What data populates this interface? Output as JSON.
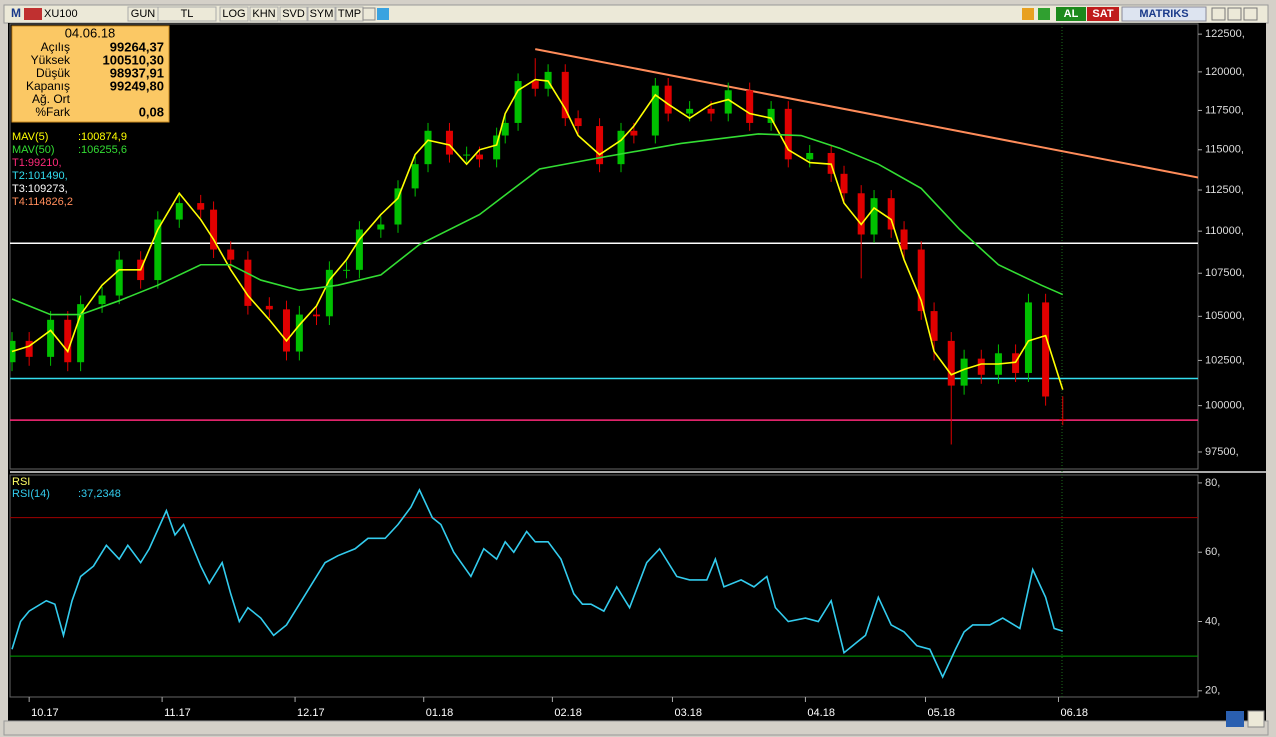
{
  "toolbar": {
    "logo": "M",
    "symbol": "XU100",
    "buttons": [
      "GUN",
      "TL",
      "LOG",
      "KHN",
      "SVD",
      "SYM",
      "TMP"
    ],
    "actions": [
      "AL",
      "SAT"
    ],
    "brand": "MATRIKS"
  },
  "info_box": {
    "date": "04.06.18",
    "rows": [
      {
        "label": "Açılış",
        "value": "99264,37"
      },
      {
        "label": "Yüksek",
        "value": "100510,30"
      },
      {
        "label": "Düşük",
        "value": "98937,91"
      },
      {
        "label": "Kapanış",
        "value": "99249,80"
      },
      {
        "label": "Ağ. Ort"
      },
      {
        "label": "%Fark",
        "value": "0,08"
      }
    ]
  },
  "chart_data": [
    {
      "type": "candlestick",
      "x": [
        0,
        4,
        9,
        13,
        16,
        21,
        25,
        30,
        34,
        39,
        44,
        47,
        51,
        55,
        60,
        64,
        67,
        71,
        74,
        78,
        81,
        86,
        90,
        94,
        97,
        102,
        106,
        109,
        113,
        115,
        118,
        122,
        125,
        129,
        132,
        137,
        142,
        145,
        150,
        153,
        158,
        163,
        167,
        172,
        177,
        181,
        186,
        191,
        194,
        198,
        201,
        205,
        208,
        212,
        215,
        219,
        222,
        226,
        230,
        234,
        237,
        241,
        245
      ],
      "open": [
        102400,
        103600,
        102700,
        104800,
        102400,
        105700,
        106200,
        108300,
        107100,
        110700,
        111700,
        111300,
        108900,
        108300,
        105600,
        105400,
        103000,
        105100,
        105000,
        107700,
        107700,
        110100,
        110400,
        112600,
        114100,
        116200,
        114700,
        114700,
        114400,
        115900,
        116700,
        119400,
        118900,
        120000,
        117000,
        116500,
        114100,
        116200,
        115900,
        119100,
        117300,
        117600,
        117300,
        118800,
        116700,
        117600,
        114400,
        114800,
        113500,
        112300,
        109800,
        112000,
        110100,
        108900,
        105300,
        103600,
        101100,
        102600,
        101700,
        102900,
        101800,
        105800,
        99264.37
      ],
      "high": [
        104100,
        104100,
        105300,
        105300,
        106200,
        106700,
        108800,
        108800,
        111200,
        112200,
        112200,
        111800,
        109400,
        108800,
        106100,
        105900,
        105600,
        105600,
        108200,
        108200,
        110600,
        110900,
        113100,
        114600,
        116700,
        116700,
        115200,
        115200,
        116400,
        117200,
        119900,
        120900,
        120500,
        120500,
        117500,
        117000,
        116700,
        116700,
        119600,
        119600,
        118100,
        118100,
        119300,
        119300,
        118100,
        118100,
        115300,
        115300,
        114000,
        112800,
        112500,
        112500,
        110600,
        109400,
        105800,
        104100,
        103100,
        103100,
        103400,
        103400,
        106300,
        106300,
        100510.3
      ],
      "low": [
        101900,
        102200,
        102200,
        101900,
        101900,
        105200,
        105700,
        106600,
        106600,
        110200,
        110800,
        108400,
        107800,
        105100,
        104900,
        102500,
        102500,
        104500,
        104500,
        107200,
        107200,
        109600,
        109900,
        112100,
        113600,
        114200,
        114200,
        113900,
        113900,
        115400,
        116200,
        118400,
        118400,
        116500,
        116000,
        113600,
        113600,
        115400,
        115400,
        116800,
        116800,
        116800,
        116800,
        116200,
        116200,
        113900,
        113900,
        113000,
        111800,
        107200,
        109300,
        109600,
        108400,
        104800,
        102500,
        97900,
        100600,
        101200,
        101200,
        101300,
        101300,
        100000,
        98937.91
      ],
      "close": [
        103600,
        102700,
        104800,
        102400,
        105700,
        106200,
        108300,
        107100,
        110700,
        111700,
        111300,
        108900,
        108300,
        105600,
        105400,
        103000,
        105100,
        105000,
        107700,
        107700,
        110100,
        110400,
        112600,
        114100,
        116200,
        114700,
        114700,
        114400,
        115900,
        116700,
        119400,
        118900,
        120000,
        117000,
        116500,
        114100,
        116200,
        115900,
        119100,
        117300,
        117600,
        117300,
        118800,
        116700,
        117600,
        114400,
        114800,
        113500,
        112300,
        109800,
        112000,
        110100,
        108900,
        105300,
        103600,
        101100,
        102600,
        101700,
        102900,
        101800,
        105800,
        100500,
        99249.8
      ],
      "up_color": "#00c000",
      "down_color": "#e00000",
      "log": true,
      "ylim": [
        96650,
        123180
      ],
      "yticks": [
        {
          "value": 97500,
          "label": "97500,"
        },
        {
          "value": 100000,
          "label": "100000,"
        },
        {
          "value": 102500,
          "label": "102500,"
        },
        {
          "value": 105000,
          "label": "105000,"
        },
        {
          "value": 107500,
          "label": "107500,"
        },
        {
          "value": 110000,
          "label": "110000,"
        },
        {
          "value": 112500,
          "label": "112500,"
        },
        {
          "value": 115000,
          "label": "115000,"
        },
        {
          "value": 117500,
          "label": "117500,"
        },
        {
          "value": 120000,
          "label": "120000,"
        },
        {
          "value": 122500,
          "label": "122500,"
        }
      ],
      "xlim": [
        0,
        277
      ],
      "xticks": [
        {
          "value": 4,
          "label": "10.17"
        },
        {
          "value": 35,
          "label": "11.17"
        },
        {
          "value": 66,
          "label": "12.17"
        },
        {
          "value": 96,
          "label": "01.18"
        },
        {
          "value": 126,
          "label": "02.18"
        },
        {
          "value": 154,
          "label": "03.18"
        },
        {
          "value": 185,
          "label": "04.18"
        },
        {
          "value": 213,
          "label": "05.18"
        },
        {
          "value": 244,
          "label": "06.18"
        }
      ],
      "overlays": [
        {
          "name": "MAV(5)",
          "value_label": ":100874,9",
          "color": "#ffff00",
          "x": [
            0,
            4,
            9,
            13,
            16,
            21,
            25,
            30,
            34,
            39,
            44,
            47,
            51,
            55,
            60,
            64,
            67,
            71,
            74,
            78,
            81,
            86,
            90,
            94,
            97,
            102,
            106,
            109,
            113,
            115,
            118,
            122,
            125,
            129,
            132,
            137,
            142,
            145,
            150,
            153,
            158,
            163,
            167,
            172,
            177,
            181,
            186,
            191,
            194,
            198,
            201,
            205,
            208,
            212,
            215,
            219,
            222,
            226,
            230,
            234,
            237,
            241,
            245
          ],
          "values": [
            103000,
            103300,
            104200,
            103000,
            105100,
            106800,
            107700,
            107700,
            110100,
            112300,
            110700,
            109500,
            107700,
            106200,
            104800,
            103600,
            104500,
            105600,
            107100,
            108300,
            109500,
            111000,
            112000,
            114700,
            115600,
            115300,
            114100,
            115000,
            115300,
            117300,
            118800,
            119500,
            119400,
            117600,
            115900,
            114700,
            115600,
            116500,
            118500,
            117900,
            117000,
            117900,
            118200,
            117300,
            117000,
            115000,
            114200,
            114100,
            111700,
            110400,
            111400,
            110700,
            108300,
            105900,
            103000,
            101700,
            102000,
            102300,
            102300,
            102400,
            103600,
            103900,
            100874.9
          ]
        },
        {
          "name": "MAV(50)",
          "value_label": ":106255,6",
          "color": "#33dd33",
          "x": [
            0,
            9,
            16,
            25,
            34,
            44,
            51,
            58,
            67,
            76,
            86,
            95,
            109,
            123,
            137,
            156,
            174,
            184,
            193,
            202,
            212,
            221,
            230,
            240,
            245
          ],
          "values": [
            106000,
            105100,
            105100,
            105900,
            106800,
            108000,
            108000,
            107100,
            106500,
            106800,
            107400,
            109200,
            111000,
            113800,
            114500,
            115400,
            116000,
            115900,
            115100,
            114100,
            112600,
            110100,
            108000,
            106800,
            106255.6
          ]
        }
      ],
      "levels": [
        {
          "name": "T1:99210,",
          "value": 99210,
          "color": "#ff2a7a"
        },
        {
          "name": "T2:101490,",
          "value": 101490,
          "color": "#33ddee"
        },
        {
          "name": "T3:109273,",
          "value": 109273,
          "color": "#ffffff"
        }
      ],
      "trend_line": {
        "name": "T4:114826,2",
        "color": "#ff8c5a",
        "x": [
          122,
          277
        ],
        "values": [
          121500,
          113250
        ]
      }
    },
    {
      "type": "line",
      "title": "RSI",
      "series": [
        {
          "name": "RSI(14)",
          "value_label": ":37,2348",
          "color": "#33ccee",
          "x": [
            0,
            2,
            4,
            8,
            10,
            12,
            14,
            16,
            19,
            22,
            25,
            27,
            30,
            32,
            36,
            38,
            40,
            44,
            46,
            49,
            51,
            53,
            55,
            58,
            61,
            64,
            67,
            71,
            73,
            76,
            80,
            83,
            87,
            90,
            93,
            95,
            98,
            100,
            103,
            107,
            110,
            113,
            115,
            117,
            120,
            122,
            125,
            128,
            131,
            133,
            135,
            138,
            141,
            144,
            148,
            151,
            155,
            158,
            162,
            164,
            166,
            170,
            173,
            176,
            178,
            181,
            185,
            188,
            191,
            194,
            197,
            199,
            202,
            205,
            208,
            211,
            214,
            217,
            220,
            222,
            224,
            228,
            231,
            235,
            238,
            241,
            243,
            245
          ],
          "values": [
            32,
            40,
            43,
            46,
            45,
            36,
            46,
            53,
            56,
            62,
            58,
            62,
            57,
            61,
            72,
            65,
            68,
            56,
            51,
            57,
            48,
            40,
            44,
            41,
            36,
            39,
            45,
            53,
            57,
            59,
            61,
            64,
            64,
            68,
            73,
            78,
            70,
            68,
            60,
            53,
            61,
            58,
            63,
            60,
            66,
            63,
            63,
            58,
            48,
            45,
            45,
            43,
            50,
            44,
            57,
            61,
            53,
            52,
            52,
            58,
            50,
            52,
            50,
            53,
            44,
            40,
            41,
            40,
            46,
            31,
            34,
            36,
            47,
            39,
            37,
            33,
            32,
            24,
            32,
            37,
            39,
            39,
            41,
            38,
            55,
            47,
            38,
            37.2348
          ]
        }
      ],
      "xlim": [
        0,
        277
      ],
      "ylim": [
        18.5,
        82
      ],
      "yticks": [
        {
          "value": 20,
          "label": "20,"
        },
        {
          "value": 40,
          "label": "40,"
        },
        {
          "value": 60,
          "label": "60,"
        },
        {
          "value": 80,
          "label": "80,"
        }
      ],
      "levels": [
        {
          "value": 70,
          "color": "#a00000"
        },
        {
          "value": 30,
          "color": "#00a000"
        }
      ]
    }
  ]
}
